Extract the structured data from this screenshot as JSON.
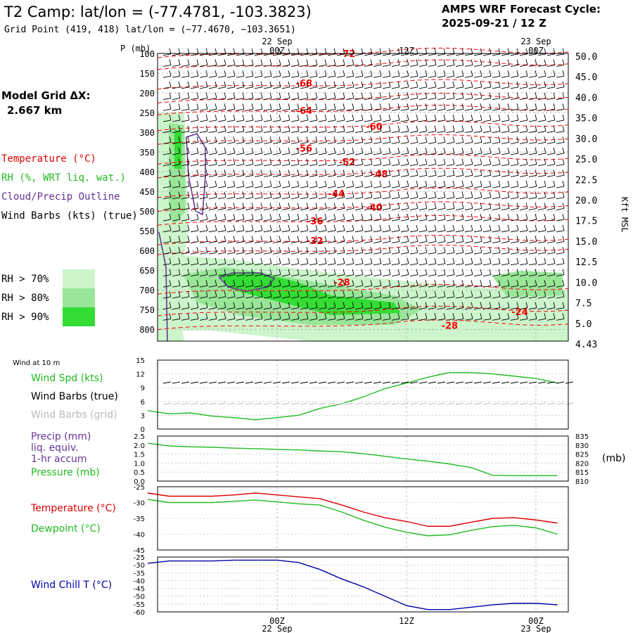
{
  "header": {
    "title": "T2 Camp:  lat/lon = (-77.4781, -103.3823)",
    "subtitle": "Grid Point (419, 418) lat/lon = (−77.4670, −103.3651)",
    "cycle_line1": "AMPS WRF Forecast Cycle:",
    "cycle_line2": "2025-09-21 / 12  Z"
  },
  "left_labels": {
    "model_grid": "Model Grid ΔX:",
    "model_grid_value": "2.667 km",
    "temperature": "Temperature (°C)",
    "rh": "RH (%, WRT liq. wat.)",
    "cloud": "Cloud/Precip Outline",
    "wind_barbs": "Wind Barbs (kts) (true)",
    "rh70": "RH > 70%",
    "rh80": "RH > 80%",
    "rh90": "RH > 90%"
  },
  "colors": {
    "temperature": "#ff0000",
    "rh_text": "#22bb22",
    "cloud": "#663399",
    "rh70": "#ccf5cc",
    "rh80": "#99e699",
    "rh90": "#33dd33",
    "windchill": "#0000aa",
    "grid": "#b0b0b0"
  },
  "time_axis": {
    "top_dates": [
      "22  Sep",
      "23  Sep"
    ],
    "ticks": [
      "00Z",
      "12Z",
      "00Z"
    ],
    "bottom_dates": [
      "22  Sep",
      "23  Sep"
    ]
  },
  "chart_data": [
    {
      "type": "heatmap",
      "name": "cross-section",
      "ylabel": "P (mb)",
      "y2label": "Kft MSL",
      "pressure_ticks": [
        100,
        150,
        200,
        250,
        300,
        350,
        400,
        450,
        500,
        550,
        600,
        650,
        700,
        750,
        800
      ],
      "height_ticks": [
        "50.0",
        "45.0",
        "40.0",
        "35.0",
        "30.0",
        "25.0",
        "22.5",
        "20.0",
        "17.5",
        "15.0",
        "12.5",
        "10.0",
        "7.5",
        "5.0",
        "4.43"
      ],
      "ylim": [
        100,
        830
      ],
      "temperature_contour_labels": [
        {
          "label": "-72",
          "hour": 6.5,
          "p": 100
        },
        {
          "label": "-68",
          "hour": 2.5,
          "p": 175
        },
        {
          "label": "-64",
          "hour": 2.5,
          "p": 245
        },
        {
          "label": "-60",
          "hour": 9.0,
          "p": 285
        },
        {
          "label": "-56",
          "hour": 2.5,
          "p": 340
        },
        {
          "label": "-52",
          "hour": 6.5,
          "p": 375
        },
        {
          "label": "-48",
          "hour": 9.5,
          "p": 405
        },
        {
          "label": "-44",
          "hour": 5.5,
          "p": 455
        },
        {
          "label": "-40",
          "hour": 9.0,
          "p": 490
        },
        {
          "label": "-36",
          "hour": 3.5,
          "p": 525
        },
        {
          "label": "-32",
          "hour": 3.5,
          "p": 575
        },
        {
          "label": "-28",
          "hour": 6.0,
          "p": 680
        },
        {
          "label": "-24",
          "hour": 22.5,
          "p": 755
        },
        {
          "label": "-28",
          "hour": 16.0,
          "p": 790
        }
      ]
    },
    {
      "type": "line",
      "name": "wind-10m",
      "label_header": "Wind at 10 m",
      "series_labels": [
        "Wind Spd (kts)",
        "Wind Barbs (true)",
        "Wind Barbs (grid)"
      ],
      "yticks": [
        0,
        3,
        6,
        9,
        12,
        15
      ],
      "ylim": [
        0,
        15
      ],
      "x": [
        -12,
        -10,
        -8,
        -6,
        -4,
        -2,
        0,
        2,
        4,
        6,
        8,
        10,
        12,
        14,
        16,
        18,
        20,
        22,
        24,
        26
      ],
      "series": [
        {
          "name": "Wind Spd (kts)",
          "values": [
            4,
            3.3,
            3.5,
            2.8,
            2.5,
            2,
            2.5,
            3,
            4.5,
            5.5,
            7,
            8.8,
            10,
            11.3,
            12.3,
            12.3,
            12,
            11.5,
            11,
            10
          ]
        }
      ]
    },
    {
      "type": "line",
      "name": "precip-pressure",
      "series_labels": [
        "Precip (mm)",
        "liq. equiv.",
        "1-hr accum",
        "Pressure (mb)"
      ],
      "yticks": [
        "0.0",
        "0.5",
        "1.0",
        "1.5",
        "2.0",
        "2.5"
      ],
      "ylim": [
        0,
        2.5
      ],
      "y2ticks": [
        810,
        815,
        820,
        825,
        830,
        835
      ],
      "y2label": "(mb)",
      "y2lim": [
        810,
        835
      ],
      "x": [
        -12,
        -10,
        -8,
        -6,
        -4,
        -2,
        0,
        2,
        4,
        6,
        8,
        10,
        12,
        14,
        16,
        18,
        20,
        22,
        24,
        26
      ],
      "series": [
        {
          "name": "Pressure (mb)",
          "axis": "y2",
          "values": [
            831,
            829.5,
            829,
            828.8,
            828.3,
            828,
            827.6,
            827.3,
            826.7,
            826.3,
            825.2,
            823.8,
            822.3,
            821,
            819.5,
            817.5,
            813.2,
            813,
            813,
            813
          ]
        }
      ]
    },
    {
      "type": "line",
      "name": "temperature-dewpoint",
      "series_labels": [
        "Temperature (°C)",
        "Dewpoint (°C)"
      ],
      "yticks": [
        -25,
        -30,
        -35,
        -40,
        -45
      ],
      "ylim": [
        -45,
        -25
      ],
      "x": [
        -12,
        -10,
        -8,
        -6,
        -4,
        -2,
        0,
        2,
        4,
        6,
        8,
        10,
        12,
        14,
        16,
        18,
        20,
        22,
        24,
        26
      ],
      "series": [
        {
          "name": "Temperature (°C)",
          "values": [
            -27,
            -28,
            -28,
            -28,
            -27.6,
            -27,
            -27.6,
            -28.2,
            -28.8,
            -30.8,
            -33,
            -34.8,
            -36,
            -37.5,
            -37.5,
            -36.2,
            -35,
            -34.8,
            -35.5,
            -36.5
          ]
        },
        {
          "name": "Dewpoint (°C)",
          "values": [
            -29,
            -30,
            -30,
            -30,
            -29.6,
            -29.2,
            -29.8,
            -30.4,
            -30.8,
            -33,
            -35.6,
            -37.8,
            -39.4,
            -40.5,
            -40.2,
            -38.8,
            -37.6,
            -37.2,
            -38,
            -40
          ]
        }
      ]
    },
    {
      "type": "line",
      "name": "wind-chill",
      "series_labels": [
        "Wind Chill T (°C)"
      ],
      "yticks": [
        -25,
        -30,
        -35,
        -40,
        -45,
        -50,
        -55,
        -60
      ],
      "ylim": [
        -60,
        -25
      ],
      "x": [
        -12,
        -10,
        -8,
        -6,
        -4,
        -2,
        0,
        2,
        4,
        6,
        8,
        10,
        12,
        14,
        16,
        18,
        20,
        22,
        24,
        26
      ],
      "series": [
        {
          "name": "Wind Chill T (°C)",
          "values": [
            -29,
            -27.5,
            -27.5,
            -27.5,
            -27,
            -27,
            -27,
            -28.5,
            -33,
            -39,
            -44,
            -50,
            -56,
            -58.5,
            -58.5,
            -57,
            -55.5,
            -54.5,
            -54.5,
            -55.5
          ]
        }
      ]
    }
  ]
}
